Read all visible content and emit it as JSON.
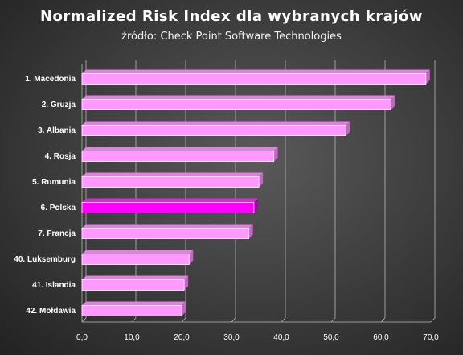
{
  "chart_data": {
    "type": "bar",
    "orientation": "horizontal",
    "title": "Normalized  Risk  Index  dla  wybranych  krajów",
    "subtitle": "źródło: Check Point Software Technologies",
    "categories": [
      "1. Macedonia",
      "2. Gruzja",
      "3. Albania",
      "4. Rosja",
      "5. Rumunia",
      "6. Polska",
      "7. Francja",
      "40. Luksemburg",
      "41. Islandia",
      "42. Mołdawia"
    ],
    "values": [
      69.0,
      62.0,
      53.0,
      38.5,
      35.5,
      34.5,
      33.5,
      21.5,
      20.5,
      20.0
    ],
    "highlight_index": 5,
    "xlim": [
      0,
      70
    ],
    "xticks": [
      "0,0",
      "10,0",
      "20,0",
      "30,0",
      "40,0",
      "50,0",
      "60,0",
      "70,0"
    ],
    "grid": true,
    "colors": {
      "bar": "#ff99ff",
      "highlight": "#ff00ff",
      "grid": "#b8b8b8",
      "text": "#ffffff"
    }
  }
}
